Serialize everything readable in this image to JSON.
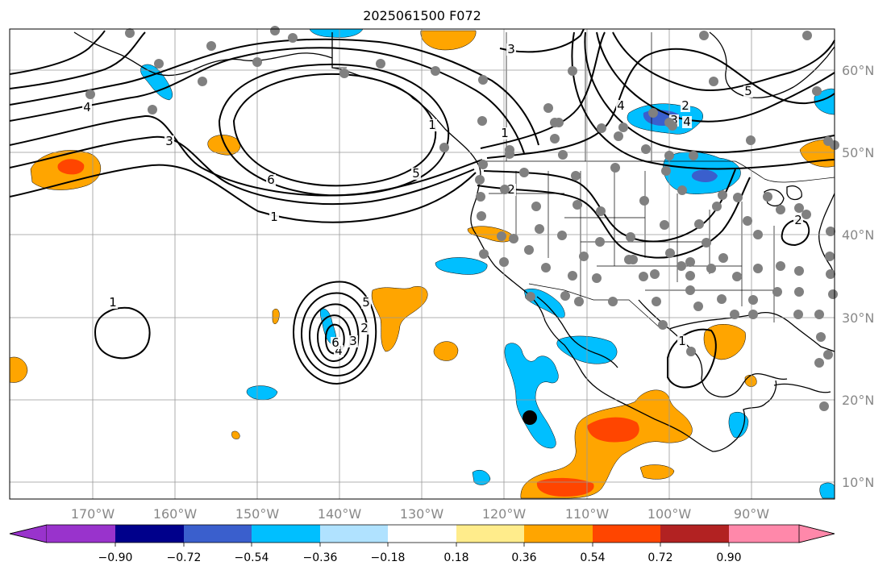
{
  "title": "2025061500 F072",
  "map": {
    "lon_labels": [
      "170°W",
      "160°W",
      "150°W",
      "140°W",
      "130°W",
      "120°W",
      "110°W",
      "100°W",
      "90°W"
    ],
    "lat_labels": [
      "60°N",
      "50°N",
      "40°N",
      "30°N",
      "20°N",
      "10°N"
    ],
    "contour_labels": [
      "1",
      "2",
      "3",
      "4",
      "5",
      "6",
      "1",
      "2",
      "3",
      "4",
      "5",
      "6",
      "1",
      "2",
      "3",
      "4",
      "1",
      "1",
      "2",
      "3",
      "4",
      "5",
      "6"
    ],
    "contour_color": "#000000",
    "land_border_color": "#000000",
    "gridline_color": "#999999",
    "station_marker_color": "#808080",
    "storm_marker_color": "#000000"
  },
  "colorbar": {
    "tick_labels": [
      "−0.90",
      "−0.72",
      "−0.54",
      "−0.36",
      "−0.18",
      "0.18",
      "0.36",
      "0.54",
      "0.72",
      "0.90"
    ],
    "bins": [
      {
        "color": "#9933cc"
      },
      {
        "color": "#00008b"
      },
      {
        "color": "#3a5fcd"
      },
      {
        "color": "#00bfff"
      },
      {
        "color": "#b0e2ff"
      },
      {
        "color": "#ffffff"
      },
      {
        "color": "#ffec8b"
      },
      {
        "color": "#ffa500"
      },
      {
        "color": "#ff4500"
      },
      {
        "color": "#b22222"
      },
      {
        "color": "#ff88aa"
      }
    ]
  }
}
